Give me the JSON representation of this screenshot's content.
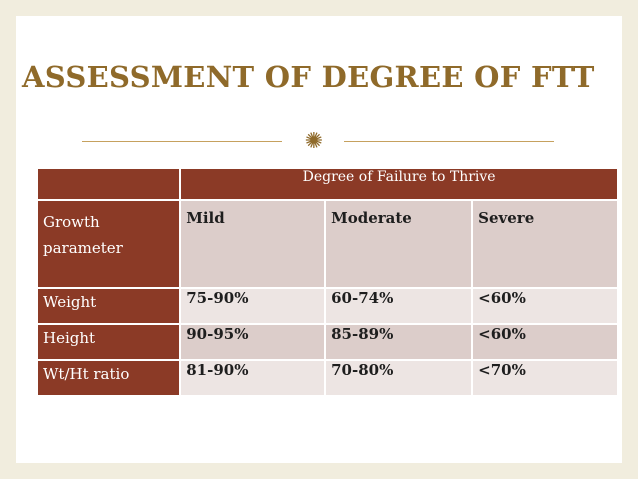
{
  "title": "ASSESSMENT OF DEGREE OF FTT",
  "divider_icon": "✺",
  "table": {
    "header": "Degree of Failure to Thrive",
    "rows": [
      {
        "label_line1": "Growth",
        "label_line2": "parameter",
        "cells": [
          "Mild",
          "Moderate",
          "Severe"
        ]
      },
      {
        "label": "Weight",
        "cells": [
          "75-90%",
          "60-74%",
          "<60%"
        ]
      },
      {
        "label": "Height",
        "cells": [
          "90-95%",
          "85-89%",
          "<60%"
        ]
      },
      {
        "label": "Wt/Ht ratio",
        "cells": [
          "81-90%",
          "70-80%",
          "<70%"
        ]
      }
    ]
  },
  "colors": {
    "title": "#8f6a2a",
    "header_bg": "#8b3a26",
    "row_dark": "#dccdca",
    "row_light": "#ede5e3",
    "border": "#f1edde"
  }
}
